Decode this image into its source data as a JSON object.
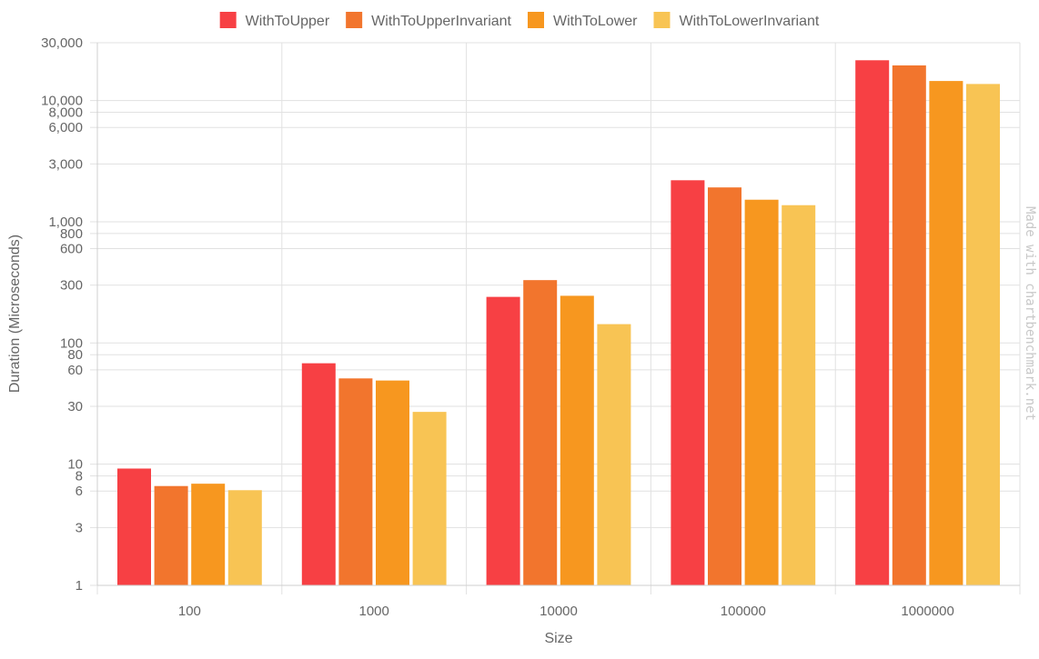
{
  "chart_data": {
    "type": "bar",
    "x_scale": "category",
    "y_scale": "log",
    "xlabel": "Size",
    "ylabel": "Duration (Microseconds)",
    "ylim": [
      1,
      30000
    ],
    "grid": true,
    "legend_position": "top",
    "watermark": "Made with chartbenchmark.net",
    "categories": [
      "100",
      "1000",
      "10000",
      "100000",
      "1000000"
    ],
    "y_ticks": [
      1,
      3,
      6,
      8,
      10,
      30,
      60,
      80,
      100,
      300,
      600,
      800,
      1000,
      3000,
      6000,
      8000,
      10000,
      30000
    ],
    "y_tick_labels": [
      "1",
      "3",
      "6",
      "8",
      "10",
      "30",
      "60",
      "80",
      "100",
      "300",
      "600",
      "800",
      "1,000",
      "3,000",
      "6,000",
      "8,000",
      "10,000",
      "30,000"
    ],
    "series": [
      {
        "name": "WithToUpper",
        "color": "#f74044",
        "values": [
          9.2,
          68,
          240,
          2200,
          21500
        ]
      },
      {
        "name": "WithToUpperInvariant",
        "color": "#f2752d",
        "values": [
          6.6,
          51,
          330,
          1920,
          19500
        ]
      },
      {
        "name": "WithToLower",
        "color": "#f7971f",
        "values": [
          6.9,
          49,
          245,
          1520,
          14500
        ]
      },
      {
        "name": "WithToLowerInvariant",
        "color": "#f8c454",
        "values": [
          6.1,
          27,
          143,
          1370,
          13700
        ]
      }
    ]
  }
}
